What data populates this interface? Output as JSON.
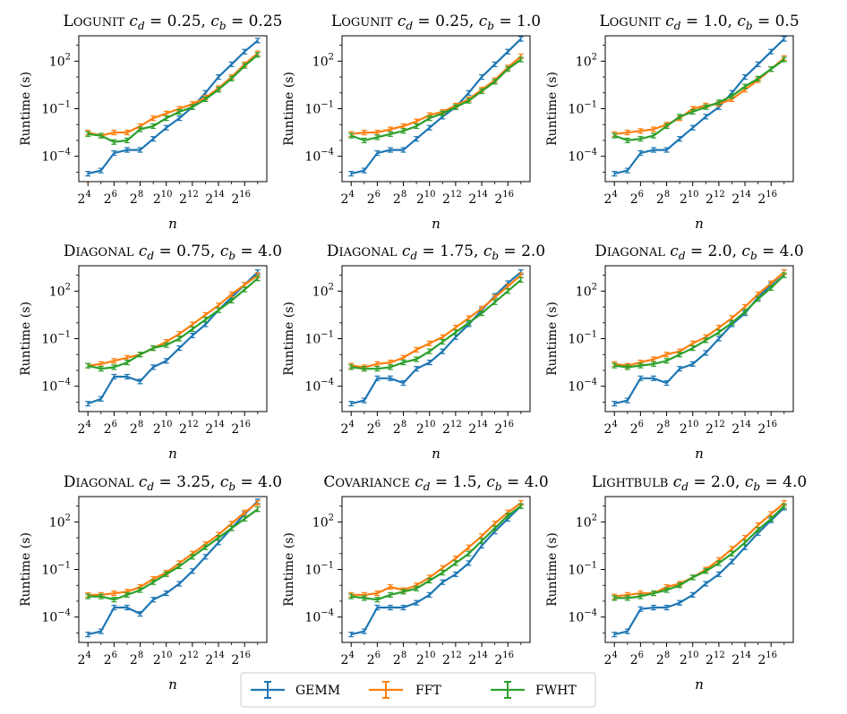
{
  "chart_data": {
    "type": "line",
    "x_label": "n",
    "y_label": "Runtime (s)",
    "x_ticks": [
      {
        "base": "2",
        "exp": "4",
        "value": 4
      },
      {
        "base": "2",
        "exp": "6",
        "value": 6
      },
      {
        "base": "2",
        "exp": "8",
        "value": 8
      },
      {
        "base": "2",
        "exp": "10",
        "value": 10
      },
      {
        "base": "2",
        "exp": "12",
        "value": 12
      },
      {
        "base": "2",
        "exp": "14",
        "value": 14
      },
      {
        "base": "2",
        "exp": "16",
        "value": 16
      }
    ],
    "y_ticks": [
      {
        "base": "10",
        "exp": "−4",
        "value": -4
      },
      {
        "base": "10",
        "exp": "−1",
        "value": -1
      },
      {
        "base": "10",
        "exp": "2",
        "value": 2
      }
    ],
    "x_range_log2": [
      3.3,
      17.7
    ],
    "y_range_log10": [
      -5.6,
      3.6
    ],
    "x_log2": [
      4,
      5,
      6,
      7,
      8,
      9,
      10,
      11,
      12,
      13,
      14,
      15,
      16,
      17
    ],
    "series_names": [
      "GEMM",
      "FFT",
      "FWHT"
    ],
    "colors": {
      "GEMM": "#1f77b4",
      "FFT": "#ff7f0e",
      "FWHT": "#2ca02c"
    },
    "panels": [
      {
        "title": {
          "name": "Logunit",
          "cd": "0.25",
          "cb": "0.25"
        },
        "series": [
          {
            "name": "GEMM",
            "log10_values": [
              -5.1,
              -4.9,
              -3.8,
              -3.6,
              -3.6,
              -2.9,
              -2.2,
              -1.6,
              -0.9,
              -0.0,
              1.0,
              1.8,
              2.6,
              3.3
            ]
          },
          {
            "name": "FFT",
            "log10_values": [
              -2.5,
              -2.7,
              -2.5,
              -2.5,
              -2.1,
              -1.6,
              -1.3,
              -1.0,
              -0.7,
              -0.3,
              0.3,
              1.0,
              1.8,
              2.5
            ]
          },
          {
            "name": "FWHT",
            "log10_values": [
              -2.6,
              -2.7,
              -3.1,
              -3.0,
              -2.3,
              -2.1,
              -1.6,
              -1.2,
              -0.9,
              -0.4,
              0.2,
              0.9,
              1.7,
              2.4
            ]
          }
        ]
      },
      {
        "title": {
          "name": "Logunit",
          "cd": "0.25",
          "cb": "1.0"
        },
        "series": [
          {
            "name": "GEMM",
            "log10_values": [
              -5.1,
              -4.9,
              -3.8,
              -3.6,
              -3.6,
              -2.9,
              -2.2,
              -1.5,
              -0.9,
              -0.0,
              1.0,
              1.8,
              2.6,
              3.4
            ]
          },
          {
            "name": "FFT",
            "log10_values": [
              -2.6,
              -2.5,
              -2.5,
              -2.3,
              -2.1,
              -1.8,
              -1.4,
              -1.2,
              -0.8,
              -0.4,
              0.2,
              0.8,
              1.6,
              2.3
            ]
          },
          {
            "name": "FWHT",
            "log10_values": [
              -2.7,
              -3.0,
              -2.8,
              -2.6,
              -2.4,
              -2.1,
              -1.6,
              -1.3,
              -0.9,
              -0.5,
              0.1,
              0.7,
              1.5,
              2.1
            ]
          }
        ]
      },
      {
        "title": {
          "name": "Logunit",
          "cd": "1.0",
          "cb": "0.5"
        },
        "series": [
          {
            "name": "GEMM",
            "log10_values": [
              -5.1,
              -4.9,
              -3.8,
              -3.6,
              -3.6,
              -2.9,
              -2.2,
              -1.5,
              -0.9,
              -0.0,
              1.0,
              1.8,
              2.6,
              3.4
            ]
          },
          {
            "name": "FFT",
            "log10_values": [
              -2.6,
              -2.5,
              -2.4,
              -2.3,
              -2.0,
              -1.6,
              -1.0,
              -0.8,
              -0.7,
              -0.4,
              0.2,
              0.8,
              1.5,
              2.2
            ]
          },
          {
            "name": "FWHT",
            "log10_values": [
              -2.7,
              -3.0,
              -2.9,
              -2.7,
              -2.1,
              -1.5,
              -1.2,
              -0.9,
              -0.6,
              -0.2,
              0.4,
              0.9,
              1.5,
              2.1
            ]
          }
        ]
      },
      {
        "title": {
          "name": "Diagonal",
          "cd": "0.75",
          "cb": "4.0"
        },
        "series": [
          {
            "name": "GEMM",
            "log10_values": [
              -5.1,
              -4.8,
              -3.4,
              -3.4,
              -3.7,
              -2.8,
              -2.4,
              -1.6,
              -0.8,
              -0.1,
              0.8,
              1.6,
              2.4,
              3.2
            ]
          },
          {
            "name": "FFT",
            "log10_values": [
              -2.7,
              -2.6,
              -2.4,
              -2.2,
              -2.0,
              -1.6,
              -1.2,
              -0.7,
              -0.1,
              0.5,
              1.1,
              1.8,
              2.4,
              3.0
            ]
          },
          {
            "name": "FWHT",
            "log10_values": [
              -2.7,
              -2.9,
              -2.8,
              -2.5,
              -2.0,
              -1.6,
              -1.4,
              -1.0,
              -0.4,
              0.2,
              0.8,
              1.4,
              2.1,
              2.8
            ]
          }
        ]
      },
      {
        "title": {
          "name": "Diagonal",
          "cd": "1.75",
          "cb": "2.0"
        },
        "series": [
          {
            "name": "GEMM",
            "log10_values": [
              -5.1,
              -4.9,
              -3.5,
              -3.5,
              -3.8,
              -2.9,
              -2.5,
              -1.8,
              -0.9,
              -0.1,
              0.8,
              1.7,
              2.5,
              3.2
            ]
          },
          {
            "name": "FFT",
            "log10_values": [
              -2.7,
              -2.8,
              -2.6,
              -2.5,
              -2.2,
              -1.7,
              -1.3,
              -0.9,
              -0.3,
              0.3,
              0.9,
              1.6,
              2.3,
              3.0
            ]
          },
          {
            "name": "FWHT",
            "log10_values": [
              -2.8,
              -2.9,
              -2.9,
              -2.8,
              -2.5,
              -2.3,
              -1.8,
              -1.2,
              -0.6,
              -0.0,
              0.6,
              1.3,
              2.0,
              2.7
            ]
          }
        ]
      },
      {
        "title": {
          "name": "Diagonal",
          "cd": "2.0",
          "cb": "4.0"
        },
        "series": [
          {
            "name": "GEMM",
            "log10_values": [
              -5.1,
              -4.9,
              -3.5,
              -3.5,
              -3.8,
              -2.9,
              -2.6,
              -1.9,
              -1.0,
              -0.1,
              0.6,
              1.6,
              2.4,
              3.2
            ]
          },
          {
            "name": "FFT",
            "log10_values": [
              -2.6,
              -2.7,
              -2.5,
              -2.3,
              -2.0,
              -1.8,
              -1.3,
              -0.9,
              -0.3,
              0.3,
              1.0,
              1.8,
              2.5,
              3.2
            ]
          },
          {
            "name": "FWHT",
            "log10_values": [
              -2.7,
              -2.8,
              -2.7,
              -2.6,
              -2.4,
              -2.0,
              -1.6,
              -1.1,
              -0.6,
              0.0,
              0.7,
              1.5,
              2.2,
              3.0
            ]
          }
        ]
      },
      {
        "title": {
          "name": "Diagonal",
          "cd": "3.25",
          "cb": "4.0"
        },
        "series": [
          {
            "name": "GEMM",
            "log10_values": [
              -5.1,
              -4.9,
              -3.4,
              -3.4,
              -3.8,
              -2.9,
              -2.5,
              -1.9,
              -1.1,
              -0.2,
              0.7,
              1.6,
              2.5,
              3.3
            ]
          },
          {
            "name": "FFT",
            "log10_values": [
              -2.6,
              -2.6,
              -2.5,
              -2.4,
              -2.1,
              -1.6,
              -1.2,
              -0.6,
              -0.0,
              0.6,
              1.2,
              1.9,
              2.6,
              3.2
            ]
          },
          {
            "name": "FWHT",
            "log10_values": [
              -2.7,
              -2.7,
              -2.9,
              -2.6,
              -2.3,
              -1.8,
              -1.3,
              -0.8,
              -0.2,
              0.4,
              1.0,
              1.6,
              2.2,
              2.8
            ]
          }
        ]
      },
      {
        "title": {
          "name": "Covariance",
          "cd": "1.5",
          "cb": "4.0"
        },
        "series": [
          {
            "name": "GEMM",
            "log10_values": [
              -5.1,
              -4.9,
              -3.4,
              -3.4,
              -3.4,
              -3.1,
              -2.6,
              -1.8,
              -1.3,
              -0.6,
              0.5,
              1.4,
              2.2,
              3.0
            ]
          },
          {
            "name": "FFT",
            "log10_values": [
              -2.6,
              -2.6,
              -2.5,
              -2.1,
              -2.3,
              -2.0,
              -1.5,
              -0.9,
              -0.3,
              0.4,
              1.1,
              1.9,
              2.6,
              3.2
            ]
          },
          {
            "name": "FWHT",
            "log10_values": [
              -2.7,
              -2.8,
              -2.9,
              -2.6,
              -2.4,
              -2.2,
              -1.7,
              -1.2,
              -0.6,
              0.0,
              0.8,
              1.6,
              2.4,
              3.0
            ]
          }
        ]
      },
      {
        "title": {
          "name": "Lightbulb",
          "cd": "2.0",
          "cb": "4.0"
        },
        "series": [
          {
            "name": "GEMM",
            "log10_values": [
              -5.1,
              -4.9,
              -3.5,
              -3.4,
              -3.4,
              -3.1,
              -2.6,
              -1.9,
              -1.3,
              -0.5,
              0.4,
              1.3,
              2.1,
              2.9
            ]
          },
          {
            "name": "FFT",
            "log10_values": [
              -2.7,
              -2.6,
              -2.5,
              -2.5,
              -2.1,
              -1.9,
              -1.5,
              -1.0,
              -0.4,
              0.3,
              1.0,
              1.8,
              2.5,
              3.2
            ]
          },
          {
            "name": "FWHT",
            "log10_values": [
              -2.8,
              -2.8,
              -2.7,
              -2.5,
              -2.3,
              -2.0,
              -1.5,
              -1.1,
              -0.6,
              0.0,
              0.7,
              1.5,
              2.2,
              3.0
            ]
          }
        ]
      }
    ]
  },
  "legend": {
    "items": [
      {
        "label": "GEMM"
      },
      {
        "label": "FFT"
      },
      {
        "label": "FWHT"
      }
    ]
  }
}
